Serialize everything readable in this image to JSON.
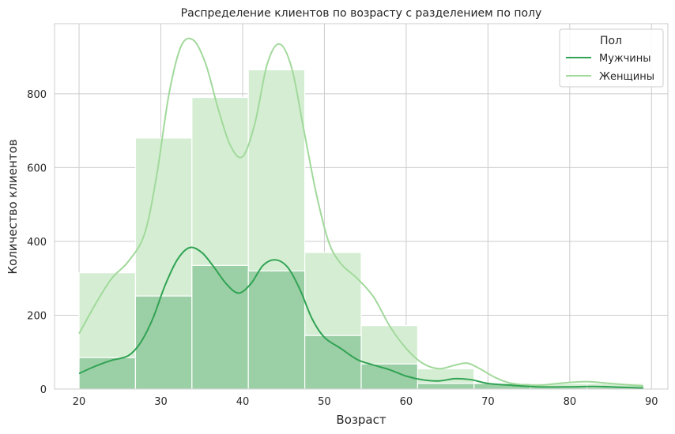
{
  "chart_data": {
    "type": "bar",
    "title": "Распределение клиентов по возрасту с разделением по полу",
    "xlabel": "Возраст",
    "ylabel": "Количество клиентов",
    "xlim": [
      17,
      92
    ],
    "ylim": [
      0,
      990
    ],
    "x_ticks": [
      20,
      30,
      40,
      50,
      60,
      70,
      80,
      90
    ],
    "y_ticks": [
      0,
      200,
      400,
      600,
      800
    ],
    "grid": true,
    "legend": {
      "title": "Пол",
      "position": "top-right"
    },
    "bin_edges": [
      20,
      26.9,
      33.8,
      40.7,
      47.6,
      54.5,
      61.4,
      68.3,
      75.2,
      82.1,
      89
    ],
    "series": [
      {
        "name": "Женщины",
        "color": "#a1d99b",
        "bar_color": "#d5eed3",
        "values": [
          315,
          680,
          790,
          865,
          370,
          172,
          55,
          15,
          15,
          15
        ],
        "kde": [
          [
            20,
            150
          ],
          [
            22,
            230
          ],
          [
            24,
            300
          ],
          [
            26,
            345
          ],
          [
            28,
            420
          ],
          [
            29.5,
            580
          ],
          [
            31,
            800
          ],
          [
            32.5,
            930
          ],
          [
            34,
            945
          ],
          [
            35.5,
            880
          ],
          [
            37,
            760
          ],
          [
            38.5,
            660
          ],
          [
            40,
            630
          ],
          [
            41.5,
            720
          ],
          [
            43,
            880
          ],
          [
            44.5,
            935
          ],
          [
            46,
            870
          ],
          [
            47.5,
            700
          ],
          [
            49,
            530
          ],
          [
            50.5,
            400
          ],
          [
            52,
            340
          ],
          [
            54,
            300
          ],
          [
            56,
            250
          ],
          [
            58,
            170
          ],
          [
            60,
            110
          ],
          [
            62,
            70
          ],
          [
            64,
            55
          ],
          [
            66,
            65
          ],
          [
            67.5,
            70
          ],
          [
            69,
            55
          ],
          [
            71,
            30
          ],
          [
            73,
            15
          ],
          [
            76,
            10
          ],
          [
            79,
            16
          ],
          [
            82,
            20
          ],
          [
            85,
            15
          ],
          [
            89,
            8
          ]
        ]
      },
      {
        "name": "Мужчины",
        "color": "#31a354",
        "bar_color": "#9bcfa5",
        "values": [
          85,
          252,
          335,
          320,
          145,
          68,
          15,
          15,
          5,
          5
        ],
        "kde": [
          [
            20,
            42
          ],
          [
            22,
            62
          ],
          [
            24,
            78
          ],
          [
            26,
            90
          ],
          [
            27.5,
            125
          ],
          [
            29,
            190
          ],
          [
            30.5,
            280
          ],
          [
            32,
            350
          ],
          [
            33.5,
            383
          ],
          [
            35,
            370
          ],
          [
            36.5,
            330
          ],
          [
            38,
            285
          ],
          [
            39.5,
            260
          ],
          [
            41,
            285
          ],
          [
            42.5,
            335
          ],
          [
            44,
            350
          ],
          [
            45.5,
            330
          ],
          [
            47,
            270
          ],
          [
            48.5,
            190
          ],
          [
            50,
            140
          ],
          [
            52,
            110
          ],
          [
            54,
            80
          ],
          [
            56,
            65
          ],
          [
            58,
            52
          ],
          [
            60,
            35
          ],
          [
            62,
            25
          ],
          [
            64,
            22
          ],
          [
            66,
            28
          ],
          [
            68,
            25
          ],
          [
            70,
            15
          ],
          [
            73,
            10
          ],
          [
            76,
            6
          ],
          [
            80,
            6
          ],
          [
            83,
            7
          ],
          [
            86,
            5
          ],
          [
            89,
            3
          ]
        ]
      }
    ]
  }
}
